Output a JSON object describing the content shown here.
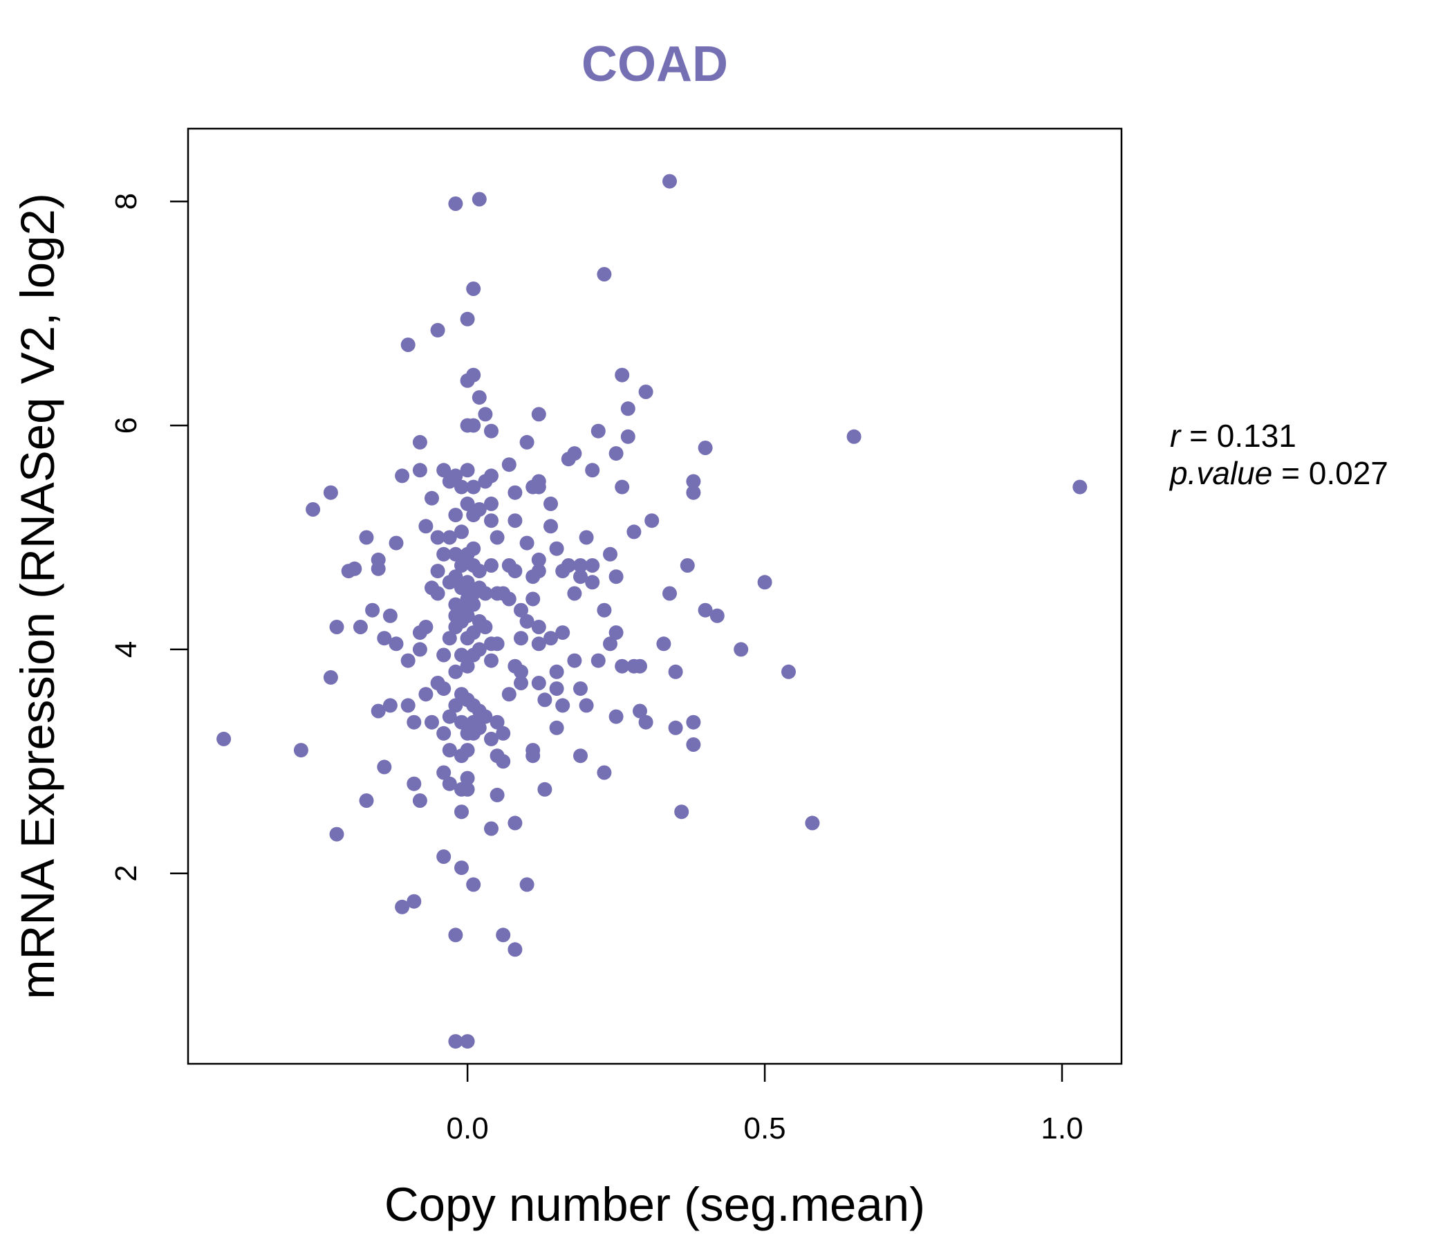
{
  "chart_data": {
    "type": "scatter",
    "title": "COAD",
    "xlabel": "Copy number (seg.mean)",
    "ylabel": "mRNA Expression (RNASeq V2, log2)",
    "xlim": [
      -0.47,
      1.1
    ],
    "ylim": [
      0.3,
      8.65
    ],
    "x_ticks": [
      0.0,
      0.5,
      1.0
    ],
    "x_tick_labels": [
      "0.0",
      "0.5",
      "1.0"
    ],
    "y_ticks": [
      2,
      4,
      6,
      8
    ],
    "y_tick_labels": [
      "2",
      "4",
      "6",
      "8"
    ],
    "grid": false,
    "legend": "none",
    "point_color": "#7570b3",
    "annotation": {
      "r_label": "r",
      "r_value": "0.131",
      "p_label": "p.value",
      "p_value": "0.027"
    },
    "points": [
      [
        -0.41,
        3.2
      ],
      [
        -0.28,
        3.1
      ],
      [
        -0.26,
        5.25
      ],
      [
        -0.23,
        5.4
      ],
      [
        -0.23,
        3.75
      ],
      [
        -0.22,
        4.2
      ],
      [
        -0.22,
        2.35
      ],
      [
        -0.2,
        4.7
      ],
      [
        -0.19,
        4.72
      ],
      [
        -0.18,
        4.2
      ],
      [
        -0.17,
        2.65
      ],
      [
        -0.17,
        5.0
      ],
      [
        -0.16,
        4.35
      ],
      [
        -0.15,
        4.8
      ],
      [
        -0.15,
        4.72
      ],
      [
        -0.15,
        3.45
      ],
      [
        -0.14,
        4.1
      ],
      [
        -0.14,
        2.95
      ],
      [
        -0.13,
        4.3
      ],
      [
        -0.13,
        3.5
      ],
      [
        -0.12,
        4.95
      ],
      [
        -0.12,
        4.05
      ],
      [
        -0.11,
        1.7
      ],
      [
        -0.11,
        5.55
      ],
      [
        -0.1,
        6.72
      ],
      [
        -0.1,
        3.9
      ],
      [
        -0.1,
        3.5
      ],
      [
        -0.09,
        3.35
      ],
      [
        -0.09,
        1.75
      ],
      [
        -0.09,
        2.8
      ],
      [
        -0.08,
        4.15
      ],
      [
        -0.08,
        4.0
      ],
      [
        -0.08,
        5.6
      ],
      [
        -0.08,
        5.85
      ],
      [
        -0.08,
        2.65
      ],
      [
        -0.07,
        5.1
      ],
      [
        -0.07,
        4.2
      ],
      [
        -0.07,
        3.6
      ],
      [
        -0.06,
        5.35
      ],
      [
        -0.06,
        4.55
      ],
      [
        -0.06,
        3.35
      ],
      [
        -0.05,
        6.85
      ],
      [
        -0.05,
        5.0
      ],
      [
        -0.05,
        4.7
      ],
      [
        -0.05,
        4.5
      ],
      [
        -0.05,
        3.7
      ],
      [
        -0.04,
        5.6
      ],
      [
        -0.04,
        4.85
      ],
      [
        -0.04,
        3.95
      ],
      [
        -0.04,
        3.65
      ],
      [
        -0.04,
        3.25
      ],
      [
        -0.04,
        2.9
      ],
      [
        -0.04,
        2.15
      ],
      [
        -0.03,
        5.5
      ],
      [
        -0.03,
        5.0
      ],
      [
        -0.03,
        4.6
      ],
      [
        -0.03,
        4.1
      ],
      [
        -0.03,
        3.4
      ],
      [
        -0.03,
        3.1
      ],
      [
        -0.03,
        2.8
      ],
      [
        -0.02,
        7.98
      ],
      [
        -0.02,
        5.55
      ],
      [
        -0.02,
        5.2
      ],
      [
        -0.02,
        4.85
      ],
      [
        -0.02,
        4.65
      ],
      [
        -0.02,
        4.4
      ],
      [
        -0.02,
        4.3
      ],
      [
        -0.02,
        4.2
      ],
      [
        -0.02,
        3.8
      ],
      [
        -0.02,
        3.5
      ],
      [
        -0.02,
        1.45
      ],
      [
        -0.02,
        0.5
      ],
      [
        -0.01,
        5.45
      ],
      [
        -0.01,
        5.05
      ],
      [
        -0.01,
        4.75
      ],
      [
        -0.01,
        4.55
      ],
      [
        -0.01,
        4.35
      ],
      [
        -0.01,
        4.25
      ],
      [
        -0.01,
        3.95
      ],
      [
        -0.01,
        3.6
      ],
      [
        -0.01,
        3.35
      ],
      [
        -0.01,
        3.05
      ],
      [
        -0.01,
        2.75
      ],
      [
        -0.01,
        2.55
      ],
      [
        -0.01,
        2.05
      ],
      [
        0.0,
        6.0
      ],
      [
        0.0,
        5.6
      ],
      [
        0.0,
        5.3
      ],
      [
        0.0,
        4.85
      ],
      [
        0.0,
        4.6
      ],
      [
        0.0,
        4.45
      ],
      [
        0.0,
        4.3
      ],
      [
        0.0,
        4.1
      ],
      [
        0.0,
        3.85
      ],
      [
        0.0,
        3.55
      ],
      [
        0.0,
        3.25
      ],
      [
        0.0,
        3.1
      ],
      [
        0.0,
        2.85
      ],
      [
        0.0,
        2.75
      ],
      [
        0.0,
        0.5
      ],
      [
        0.0,
        6.95
      ],
      [
        0.0,
        6.4
      ],
      [
        0.01,
        7.22
      ],
      [
        0.01,
        6.45
      ],
      [
        0.01,
        6.0
      ],
      [
        0.01,
        5.45
      ],
      [
        0.01,
        5.2
      ],
      [
        0.01,
        4.9
      ],
      [
        0.01,
        4.75
      ],
      [
        0.01,
        4.5
      ],
      [
        0.01,
        4.4
      ],
      [
        0.01,
        4.15
      ],
      [
        0.01,
        3.95
      ],
      [
        0.01,
        3.5
      ],
      [
        0.01,
        3.35
      ],
      [
        0.01,
        3.25
      ],
      [
        0.01,
        1.9
      ],
      [
        0.02,
        8.02
      ],
      [
        0.02,
        6.25
      ],
      [
        0.02,
        5.25
      ],
      [
        0.02,
        4.7
      ],
      [
        0.02,
        4.55
      ],
      [
        0.02,
        4.25
      ],
      [
        0.02,
        4.0
      ],
      [
        0.02,
        3.45
      ],
      [
        0.02,
        3.3
      ],
      [
        0.03,
        6.1
      ],
      [
        0.03,
        5.5
      ],
      [
        0.03,
        4.5
      ],
      [
        0.03,
        4.2
      ],
      [
        0.03,
        3.4
      ],
      [
        0.04,
        5.95
      ],
      [
        0.04,
        5.55
      ],
      [
        0.04,
        5.3
      ],
      [
        0.04,
        5.15
      ],
      [
        0.04,
        4.75
      ],
      [
        0.04,
        4.05
      ],
      [
        0.04,
        3.9
      ],
      [
        0.04,
        3.2
      ],
      [
        0.04,
        2.4
      ],
      [
        0.05,
        5.0
      ],
      [
        0.05,
        4.5
      ],
      [
        0.05,
        4.05
      ],
      [
        0.05,
        3.35
      ],
      [
        0.05,
        3.05
      ],
      [
        0.05,
        2.7
      ],
      [
        0.06,
        4.5
      ],
      [
        0.06,
        3.25
      ],
      [
        0.06,
        3.0
      ],
      [
        0.06,
        1.45
      ],
      [
        0.07,
        4.75
      ],
      [
        0.07,
        4.45
      ],
      [
        0.07,
        3.6
      ],
      [
        0.07,
        5.65
      ],
      [
        0.08,
        4.7
      ],
      [
        0.08,
        1.32
      ],
      [
        0.08,
        5.4
      ],
      [
        0.08,
        5.15
      ],
      [
        0.08,
        3.85
      ],
      [
        0.08,
        2.45
      ],
      [
        0.09,
        4.35
      ],
      [
        0.09,
        4.1
      ],
      [
        0.09,
        3.8
      ],
      [
        0.09,
        3.7
      ],
      [
        0.1,
        5.85
      ],
      [
        0.1,
        4.95
      ],
      [
        0.1,
        4.25
      ],
      [
        0.1,
        1.9
      ],
      [
        0.11,
        5.45
      ],
      [
        0.11,
        4.65
      ],
      [
        0.11,
        4.45
      ],
      [
        0.11,
        3.1
      ],
      [
        0.11,
        3.05
      ],
      [
        0.12,
        6.1
      ],
      [
        0.12,
        5.5
      ],
      [
        0.12,
        5.45
      ],
      [
        0.12,
        4.8
      ],
      [
        0.12,
        4.7
      ],
      [
        0.12,
        4.2
      ],
      [
        0.12,
        4.05
      ],
      [
        0.12,
        3.7
      ],
      [
        0.13,
        3.55
      ],
      [
        0.13,
        2.75
      ],
      [
        0.14,
        5.3
      ],
      [
        0.14,
        5.1
      ],
      [
        0.14,
        4.1
      ],
      [
        0.15,
        4.9
      ],
      [
        0.15,
        3.8
      ],
      [
        0.15,
        3.65
      ],
      [
        0.15,
        3.3
      ],
      [
        0.16,
        4.7
      ],
      [
        0.16,
        4.15
      ],
      [
        0.16,
        3.5
      ],
      [
        0.17,
        5.7
      ],
      [
        0.17,
        4.75
      ],
      [
        0.18,
        5.75
      ],
      [
        0.18,
        4.5
      ],
      [
        0.18,
        3.9
      ],
      [
        0.19,
        4.75
      ],
      [
        0.19,
        4.65
      ],
      [
        0.19,
        3.65
      ],
      [
        0.19,
        3.05
      ],
      [
        0.2,
        5.0
      ],
      [
        0.2,
        3.5
      ],
      [
        0.21,
        5.6
      ],
      [
        0.21,
        4.75
      ],
      [
        0.21,
        4.6
      ],
      [
        0.22,
        3.9
      ],
      [
        0.22,
        5.95
      ],
      [
        0.23,
        4.35
      ],
      [
        0.23,
        2.9
      ],
      [
        0.23,
        7.35
      ],
      [
        0.24,
        4.85
      ],
      [
        0.24,
        4.05
      ],
      [
        0.25,
        4.65
      ],
      [
        0.25,
        4.15
      ],
      [
        0.25,
        3.4
      ],
      [
        0.25,
        5.75
      ],
      [
        0.26,
        3.85
      ],
      [
        0.26,
        5.45
      ],
      [
        0.26,
        6.45
      ],
      [
        0.27,
        6.15
      ],
      [
        0.27,
        5.9
      ],
      [
        0.28,
        5.05
      ],
      [
        0.28,
        3.85
      ],
      [
        0.29,
        3.85
      ],
      [
        0.29,
        3.45
      ],
      [
        0.3,
        6.3
      ],
      [
        0.3,
        3.35
      ],
      [
        0.31,
        5.15
      ],
      [
        0.33,
        4.05
      ],
      [
        0.34,
        8.18
      ],
      [
        0.34,
        4.5
      ],
      [
        0.35,
        3.3
      ],
      [
        0.35,
        3.8
      ],
      [
        0.36,
        2.55
      ],
      [
        0.37,
        4.75
      ],
      [
        0.38,
        5.5
      ],
      [
        0.38,
        5.4
      ],
      [
        0.38,
        3.35
      ],
      [
        0.38,
        3.15
      ],
      [
        0.4,
        5.8
      ],
      [
        0.4,
        4.35
      ],
      [
        0.42,
        4.3
      ],
      [
        0.46,
        4.0
      ],
      [
        0.5,
        4.6
      ],
      [
        0.54,
        3.8
      ],
      [
        0.58,
        2.45
      ],
      [
        0.65,
        5.9
      ],
      [
        1.03,
        5.45
      ]
    ]
  }
}
